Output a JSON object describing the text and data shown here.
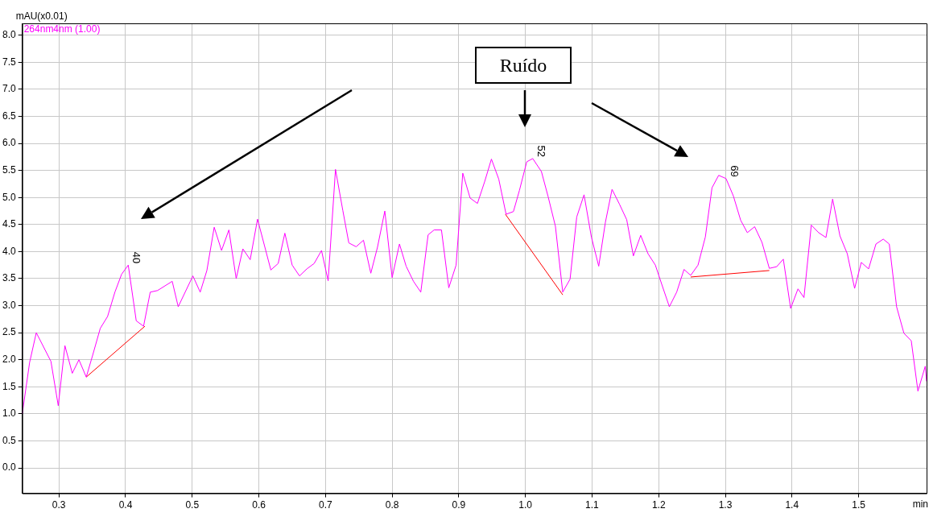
{
  "chart_data": {
    "type": "line",
    "xlabel": "min",
    "ylabel": "mAU(x0.01)",
    "xlim": [
      0.245,
      1.602
    ],
    "xticks": [
      0.3,
      0.4,
      0.5,
      0.6,
      0.7,
      0.8,
      0.9,
      {
        "value": 1,
        "label": "1.0"
      },
      1.1,
      1.2,
      1.3,
      1.4,
      1.5
    ],
    "ylim": [
      -0.47,
      8.22
    ],
    "yticks": [
      {
        "value": 0,
        "label": "0.0"
      },
      0.5,
      {
        "value": 1,
        "label": "1.0"
      },
      1.5,
      {
        "value": 2,
        "label": "2.0"
      },
      2.5,
      {
        "value": 3,
        "label": "3.0"
      },
      3.5,
      {
        "value": 4,
        "label": "4.0"
      },
      4.5,
      {
        "value": 5,
        "label": "5.0"
      },
      5.5,
      {
        "value": 6,
        "label": "6.0"
      },
      6.5,
      {
        "value": 7,
        "label": "7.0"
      },
      7.5,
      {
        "value": 8,
        "label": "8.0"
      }
    ],
    "grid": true,
    "legend": "top left",
    "marker": "none",
    "line_style": "solid",
    "series": [
      {
        "name": "264nm4nm (1.00)",
        "color": "#ff00ff",
        "x": [
          0.245,
          0.256,
          0.266,
          0.288,
          0.299,
          0.309,
          0.32,
          0.33,
          0.341,
          0.351,
          0.362,
          0.373,
          0.384,
          0.394,
          0.404,
          0.416,
          0.427,
          0.437,
          0.448,
          0.47,
          0.479,
          0.501,
          0.512,
          0.522,
          0.533,
          0.544,
          0.555,
          0.566,
          0.576,
          0.587,
          0.598,
          0.618,
          0.629,
          0.639,
          0.65,
          0.661,
          0.672,
          0.683,
          0.694,
          0.704,
          0.715,
          0.726,
          0.735,
          0.746,
          0.757,
          0.768,
          0.778,
          0.789,
          0.8,
          0.811,
          0.821,
          0.832,
          0.843,
          0.854,
          0.863,
          0.874,
          0.885,
          0.896,
          0.906,
          0.917,
          0.928,
          0.939,
          0.949,
          0.96,
          0.971,
          0.982,
          0.991,
          1.002,
          1.011,
          1.024,
          1.034,
          1.045,
          1.056,
          1.067,
          1.077,
          1.088,
          1.099,
          1.11,
          1.12,
          1.13,
          1.141,
          1.152,
          1.162,
          1.173,
          1.184,
          1.195,
          1.205,
          1.216,
          1.227,
          1.238,
          1.248,
          1.259,
          1.27,
          1.28,
          1.29,
          1.301,
          1.312,
          1.323,
          1.333,
          1.344,
          1.355,
          1.366,
          1.377,
          1.387,
          1.398,
          1.409,
          1.418,
          1.429,
          1.44,
          1.451,
          1.461,
          1.472,
          1.483,
          1.494,
          1.504,
          1.515,
          1.526,
          1.537,
          1.546,
          1.557,
          1.568,
          1.579,
          1.589,
          1.6,
          1.602
        ],
        "values": [
          1.0,
          1.95,
          2.5,
          1.97,
          1.15,
          2.26,
          1.75,
          2.0,
          1.68,
          2.1,
          2.58,
          2.8,
          3.25,
          3.58,
          3.75,
          2.72,
          2.62,
          3.25,
          3.28,
          3.45,
          2.98,
          3.55,
          3.25,
          3.65,
          4.45,
          4.02,
          4.4,
          3.5,
          4.05,
          3.85,
          4.6,
          3.66,
          3.78,
          4.34,
          3.75,
          3.55,
          3.68,
          3.78,
          4.02,
          3.46,
          5.52,
          4.76,
          4.16,
          4.09,
          4.21,
          3.6,
          4.08,
          4.75,
          3.52,
          4.14,
          3.73,
          3.45,
          3.25,
          4.31,
          4.4,
          4.4,
          3.33,
          3.75,
          5.45,
          4.99,
          4.89,
          5.3,
          5.71,
          5.34,
          4.69,
          4.74,
          5.13,
          5.66,
          5.72,
          5.48,
          5.02,
          4.47,
          3.25,
          3.49,
          4.64,
          5.05,
          4.27,
          3.73,
          4.54,
          5.15,
          4.88,
          4.59,
          3.92,
          4.3,
          3.96,
          3.75,
          3.38,
          2.98,
          3.25,
          3.67,
          3.56,
          3.75,
          4.27,
          5.18,
          5.41,
          5.35,
          5.03,
          4.58,
          4.35,
          4.46,
          4.17,
          3.69,
          3.72,
          3.86,
          2.95,
          3.31,
          3.15,
          4.49,
          4.35,
          4.26,
          4.97,
          4.29,
          3.96,
          3.32,
          3.8,
          3.68,
          4.14,
          4.23,
          4.14,
          2.98,
          2.49,
          2.35,
          1.42,
          1.88,
          1.6
        ]
      },
      {
        "color": "#ff0000",
        "x": [
          0.341,
          0.429
        ],
        "values": [
          1.68,
          2.62
        ]
      },
      {
        "color": "#ff0000",
        "x": [
          0.97,
          1.056
        ],
        "values": [
          4.69,
          3.2
        ]
      },
      {
        "color": "#ff0000",
        "x": [
          1.248,
          1.366
        ],
        "values": [
          3.53,
          3.65
        ]
      }
    ],
    "annotations": [
      "Ruído",
      {
        "text": "40",
        "x": 0.404,
        "y": 3.75
      },
      {
        "text": "52",
        "x": 1.011,
        "y": 5.72
      },
      {
        "text": "69",
        "x": 1.301,
        "y": 5.35
      }
    ]
  }
}
